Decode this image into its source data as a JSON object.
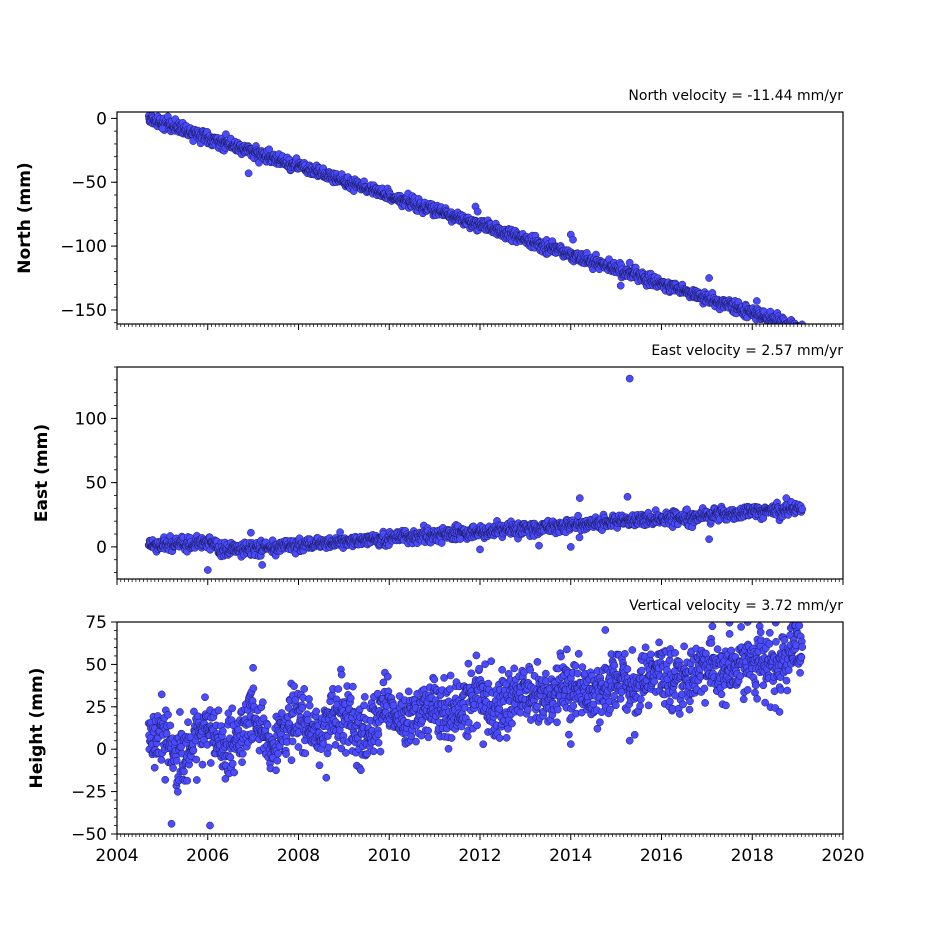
{
  "chart_data": [
    {
      "type": "scatter",
      "title": "North velocity = -11.44 mm/yr",
      "xlabel": "",
      "ylabel": "North (mm)",
      "xlim": [
        2004,
        2020
      ],
      "ylim": [
        -161,
        5
      ],
      "y_ticks": [
        0,
        -50,
        -100,
        -150
      ],
      "y_tick_labels": [
        "0",
        "−50",
        "−100",
        "−150"
      ],
      "x_start": 2004.7,
      "x_end": 2019.1,
      "velocity": -11.44,
      "intercept": 0,
      "noise": 2.2,
      "n_points": 1500,
      "outliers": [
        {
          "x": 2011.9,
          "y": -69
        },
        {
          "x": 2011.95,
          "y": -73
        },
        {
          "x": 2014.0,
          "y": -91
        },
        {
          "x": 2014.05,
          "y": -95
        },
        {
          "x": 2015.3,
          "y": -113
        },
        {
          "x": 2017.05,
          "y": -125
        },
        {
          "x": 2006.9,
          "y": -43
        },
        {
          "x": 2005.0,
          "y": -8
        },
        {
          "x": 2018.1,
          "y": -143
        },
        {
          "x": 2015.1,
          "y": -131
        }
      ],
      "series_color": "#4a4aff",
      "edge_color": "#1a1a5a"
    },
    {
      "type": "scatter",
      "title": "East velocity = 2.57 mm/yr",
      "xlabel": "",
      "ylabel": "East (mm)",
      "xlim": [
        2004,
        2020
      ],
      "ylim": [
        -25,
        140
      ],
      "y_ticks": [
        0,
        50,
        100
      ],
      "y_tick_labels": [
        "0",
        "50",
        "100"
      ],
      "x_start": 2004.7,
      "x_end": 2019.1,
      "velocity": 2.57,
      "intercept": -7,
      "noise": 2.5,
      "n_points": 1500,
      "outliers": [
        {
          "x": 2015.3,
          "y": 131
        },
        {
          "x": 2015.25,
          "y": 39
        },
        {
          "x": 2014.2,
          "y": 38
        },
        {
          "x": 2018.75,
          "y": 38
        },
        {
          "x": 2017.05,
          "y": 6
        },
        {
          "x": 2006.0,
          "y": -18
        },
        {
          "x": 2007.2,
          "y": -14
        },
        {
          "x": 2013.3,
          "y": 1
        },
        {
          "x": 2014.0,
          "y": 0
        },
        {
          "x": 2012.0,
          "y": -2
        },
        {
          "x": 2006.95,
          "y": 11
        }
      ],
      "series_color": "#4a4aff",
      "edge_color": "#1a1a5a"
    },
    {
      "type": "scatter",
      "title": "Vertical velocity = 3.72 mm/yr",
      "xlabel": "",
      "ylabel": "Height (mm)",
      "xlim": [
        2004,
        2020
      ],
      "ylim": [
        -50,
        75
      ],
      "y_ticks": [
        -50,
        -25,
        0,
        25,
        50,
        75
      ],
      "y_tick_labels": [
        "−50",
        "−25",
        "0",
        "25",
        "50",
        "75"
      ],
      "x_start": 2004.7,
      "x_end": 2019.1,
      "velocity": 3.72,
      "intercept": 0,
      "noise": 9,
      "n_points": 1800,
      "outliers": [
        {
          "x": 2007.0,
          "y": 48
        },
        {
          "x": 2008.95,
          "y": 44
        },
        {
          "x": 2006.05,
          "y": -45
        },
        {
          "x": 2005.2,
          "y": -44
        },
        {
          "x": 2017.9,
          "y": 75
        },
        {
          "x": 2017.5,
          "y": 68
        },
        {
          "x": 2018.6,
          "y": 22
        },
        {
          "x": 2014.0,
          "y": 3
        },
        {
          "x": 2015.3,
          "y": 5
        },
        {
          "x": 2015.65,
          "y": 60
        }
      ],
      "series_color": "#4a4aff",
      "edge_color": "#1a1a5a"
    }
  ],
  "x_ticks": [
    2004,
    2006,
    2008,
    2010,
    2012,
    2014,
    2016,
    2018,
    2020
  ],
  "x_tick_labels": [
    "2004",
    "2006",
    "2008",
    "2010",
    "2012",
    "2014",
    "2016",
    "2018",
    "2020"
  ]
}
